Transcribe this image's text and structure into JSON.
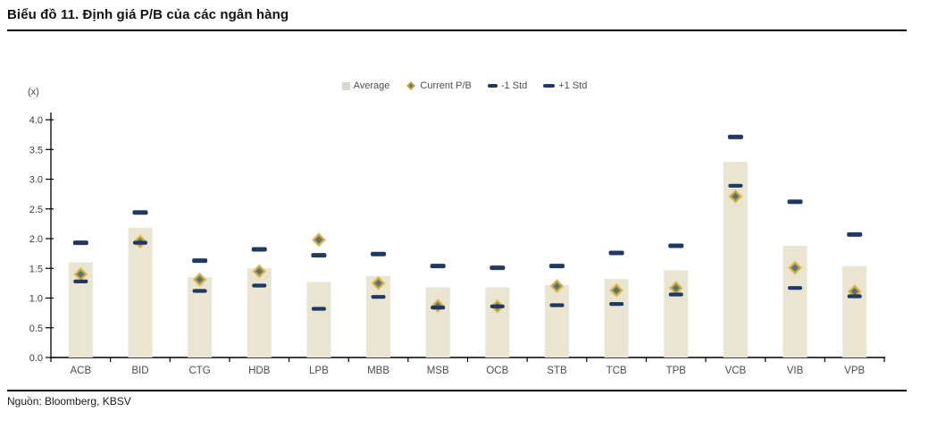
{
  "page": {
    "title": "Biểu đồ 11. Định giá P/B của các ngân hàng",
    "source": "Nguồn: Bloomberg, KBSV"
  },
  "chart_data": {
    "type": "bar",
    "title": "Biểu đồ 11. Định giá P/B của các ngân hàng",
    "unit_label": "(x)",
    "xlabel": "",
    "ylabel": "(x)",
    "ylim": [
      0,
      4
    ],
    "ytick_step": 0.5,
    "ytick_labels": [
      "0.0",
      "0.5",
      "1.0",
      "1.5",
      "2.0",
      "2.5",
      "3.0",
      "3.5",
      "4.0"
    ],
    "grid": false,
    "legend_position": "top-center",
    "categories": [
      "ACB",
      "BID",
      "CTG",
      "HDB",
      "LPB",
      "MBB",
      "MSB",
      "OCB",
      "STB",
      "TCB",
      "TPB",
      "VCB",
      "VIB",
      "VPB"
    ],
    "series": [
      {
        "name": "Average",
        "marker": "bar",
        "color": "#e9e5d1",
        "legend_color": "#d9d8d0",
        "values": [
          1.6,
          2.18,
          1.35,
          1.5,
          1.27,
          1.37,
          1.18,
          1.18,
          1.22,
          1.32,
          1.47,
          3.29,
          1.88,
          1.54
        ]
      },
      {
        "name": "Current P/B",
        "marker": "diamond",
        "color": "#c9a637",
        "inner_color": "#55737f",
        "values": [
          1.4,
          1.95,
          1.31,
          1.45,
          1.98,
          1.25,
          0.87,
          0.86,
          1.2,
          1.13,
          1.17,
          2.71,
          1.51,
          1.11
        ]
      },
      {
        "name": "-1 Std",
        "marker": "dash",
        "color": "#1f3864",
        "values": [
          1.28,
          1.93,
          1.12,
          1.21,
          0.82,
          1.02,
          0.84,
          0.86,
          0.88,
          0.9,
          1.06,
          2.89,
          1.17,
          1.03
        ]
      },
      {
        "name": "+1 Std",
        "marker": "dash",
        "color": "#1f3864",
        "values": [
          1.93,
          2.44,
          1.63,
          1.82,
          1.72,
          1.74,
          1.54,
          1.51,
          1.54,
          1.76,
          1.88,
          3.71,
          2.62,
          2.07
        ]
      }
    ],
    "colors": {
      "axis": "#000000",
      "tick_text": "#404040",
      "category_text": "#4d4d4d",
      "legend_text": "#4f4f4f"
    }
  }
}
